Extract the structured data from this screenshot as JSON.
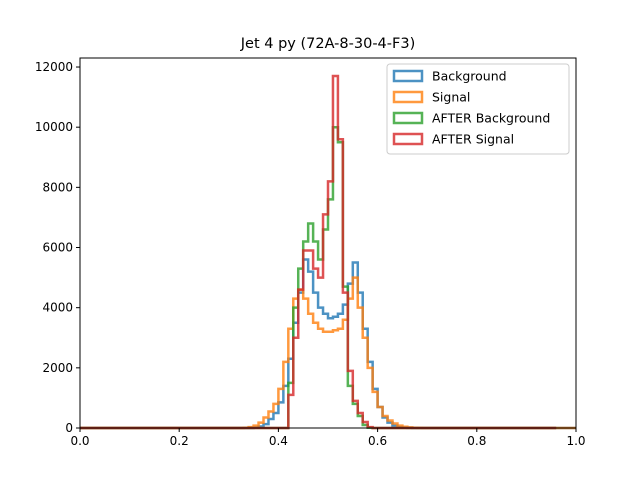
{
  "chart_data": {
    "type": "step-histogram",
    "title": "Jet 4 py (72A-8-30-4-F3)",
    "xlabel": "",
    "ylabel": "",
    "xlim": [
      0,
      1
    ],
    "ylim": [
      0,
      12300
    ],
    "xticks": [
      0.0,
      0.2,
      0.4,
      0.6,
      0.8,
      1.0
    ],
    "xtick_labels": [
      "0.0",
      "0.2",
      "0.4",
      "0.6",
      "0.8",
      "1.0"
    ],
    "yticks": [
      0,
      2000,
      4000,
      6000,
      8000,
      10000,
      12000
    ],
    "ytick_labels": [
      "0",
      "2000",
      "4000",
      "6000",
      "8000",
      "10000",
      "12000"
    ],
    "bin_start": 0.0,
    "bin_width": 0.01,
    "legend_position": "top-right",
    "series": [
      {
        "name": "Background",
        "color": "#1f77b4",
        "values": [
          0,
          0,
          0,
          0,
          0,
          0,
          0,
          0,
          0,
          0,
          0,
          0,
          0,
          0,
          0,
          0,
          0,
          0,
          0,
          0,
          0,
          0,
          0,
          0,
          0,
          0,
          0,
          0,
          0,
          0,
          0,
          0,
          0,
          0,
          0,
          10,
          50,
          130,
          300,
          500,
          850,
          1400,
          2300,
          3500,
          4500,
          5600,
          5200,
          4500,
          4000,
          3800,
          3650,
          3700,
          3800,
          4100,
          4800,
          5500,
          4500,
          3300,
          2200,
          1300,
          700,
          350,
          180,
          80,
          30,
          10,
          5,
          0,
          0,
          0,
          0,
          0,
          0,
          0,
          0,
          0,
          0,
          0,
          0,
          0,
          0,
          0,
          0,
          0,
          0,
          0,
          0,
          0,
          0,
          0,
          0,
          0,
          0,
          0,
          0,
          0,
          0,
          0,
          0,
          0
        ]
      },
      {
        "name": "Signal",
        "color": "#ff7f0e",
        "values": [
          0,
          0,
          0,
          0,
          0,
          0,
          0,
          0,
          0,
          0,
          0,
          0,
          0,
          0,
          0,
          0,
          0,
          0,
          0,
          0,
          0,
          0,
          0,
          0,
          0,
          0,
          0,
          0,
          0,
          0,
          0,
          0,
          0,
          10,
          30,
          80,
          180,
          350,
          550,
          800,
          1300,
          2200,
          3300,
          4300,
          4600,
          4300,
          3800,
          3500,
          3300,
          3200,
          3200,
          3250,
          3300,
          3600,
          4300,
          5000,
          4000,
          3000,
          2000,
          1200,
          700,
          400,
          250,
          150,
          80,
          40,
          20,
          10,
          5,
          0,
          0,
          0,
          0,
          0,
          0,
          0,
          0,
          0,
          0,
          0,
          0,
          0,
          0,
          0,
          0,
          0,
          0,
          0,
          0,
          0,
          0,
          0,
          0,
          0,
          0,
          0,
          0,
          0,
          0,
          0
        ]
      },
      {
        "name": "AFTER Background",
        "color": "#2ca02c",
        "values": [
          0,
          0,
          0,
          0,
          0,
          0,
          0,
          0,
          0,
          0,
          0,
          0,
          0,
          0,
          0,
          0,
          0,
          0,
          0,
          0,
          0,
          0,
          0,
          0,
          0,
          0,
          0,
          0,
          0,
          0,
          0,
          0,
          0,
          0,
          0,
          0,
          0,
          0,
          0,
          0,
          0,
          0,
          1500,
          4000,
          5300,
          6200,
          6800,
          6200,
          5600,
          6600,
          7600,
          10000,
          9500,
          4700,
          1400,
          800,
          400,
          100,
          10,
          0,
          0,
          0,
          0,
          0,
          0,
          0,
          0,
          0,
          0,
          0,
          0,
          0,
          0,
          0,
          0,
          0,
          0,
          0,
          0,
          0,
          0,
          0,
          0,
          0,
          0,
          0,
          0,
          0,
          0,
          0,
          0,
          0,
          0,
          0,
          0,
          0
        ]
      },
      {
        "name": "AFTER Signal",
        "color": "#d62728",
        "values": [
          0,
          0,
          0,
          0,
          0,
          0,
          0,
          0,
          0,
          0,
          0,
          0,
          0,
          0,
          0,
          0,
          0,
          0,
          0,
          0,
          0,
          0,
          0,
          0,
          0,
          0,
          0,
          0,
          0,
          0,
          0,
          0,
          0,
          0,
          0,
          0,
          0,
          0,
          0,
          0,
          0,
          0,
          1100,
          3000,
          4600,
          5900,
          5900,
          5300,
          5000,
          7100,
          8200,
          11700,
          9600,
          4500,
          1900,
          900,
          500,
          200,
          30,
          0,
          0,
          0,
          0,
          0,
          0,
          0,
          0,
          0,
          0,
          0,
          0,
          0,
          0,
          0,
          0,
          0,
          0,
          0,
          0,
          0,
          0,
          0,
          0,
          0,
          0,
          0,
          0,
          0,
          0,
          0,
          0,
          0,
          0,
          0,
          0,
          0
        ]
      }
    ]
  }
}
